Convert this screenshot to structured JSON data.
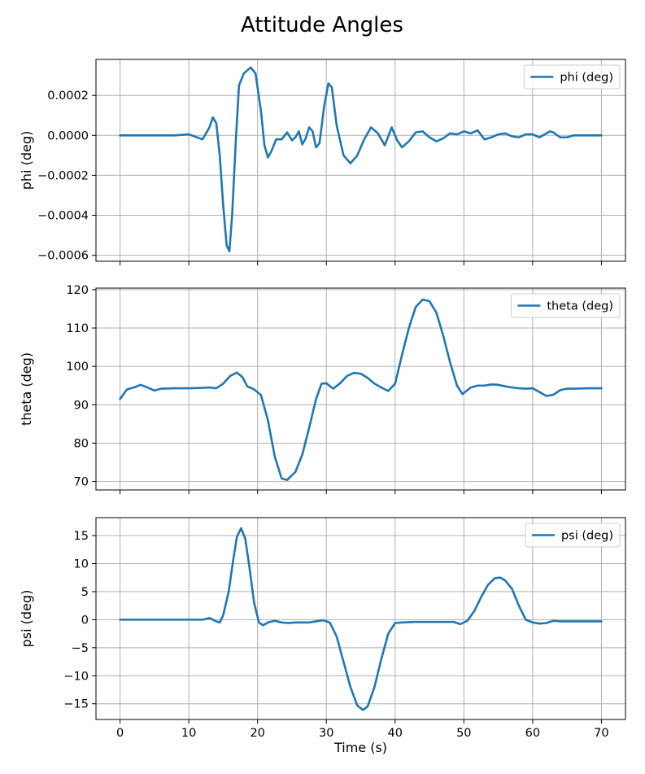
{
  "figure": {
    "title": "Attitude Angles",
    "line_color": "#1f77b4",
    "grid_color": "#b0b0b0"
  },
  "chart_data": [
    {
      "type": "line",
      "ylabel": "phi (deg)",
      "xlabel": "",
      "xlim": [
        -3.5,
        73.5
      ],
      "ylim": [
        -0.00063,
        0.00038
      ],
      "xticks": [
        0,
        10,
        20,
        30,
        40,
        50,
        60,
        70
      ],
      "xtick_labels": [],
      "yticks": [
        -0.0006,
        -0.0004,
        -0.0002,
        0.0,
        0.0002
      ],
      "ytick_labels": [
        "−0.0006",
        "−0.0004",
        "−0.0002",
        "0.0000",
        "0.0002"
      ],
      "grid": true,
      "legend_position": "top-right",
      "series": [
        {
          "name": "phi (deg)",
          "points": [
            [
              0,
              0
            ],
            [
              5,
              0
            ],
            [
              8,
              0
            ],
            [
              10,
              5e-06
            ],
            [
              12,
              -2e-05
            ],
            [
              13,
              4e-05
            ],
            [
              13.5,
              9e-05
            ],
            [
              14,
              6e-05
            ],
            [
              14.5,
              -0.0001
            ],
            [
              15,
              -0.00035
            ],
            [
              15.5,
              -0.00055
            ],
            [
              15.9,
              -0.00058
            ],
            [
              16.3,
              -0.0004
            ],
            [
              16.8,
              -5e-05
            ],
            [
              17.3,
              0.00025
            ],
            [
              18,
              0.00031
            ],
            [
              19,
              0.00034
            ],
            [
              19.7,
              0.00031
            ],
            [
              20.5,
              0.00012
            ],
            [
              21,
              -5e-05
            ],
            [
              21.5,
              -0.00011
            ],
            [
              22,
              -8e-05
            ],
            [
              22.7,
              -2e-05
            ],
            [
              23.5,
              -2e-05
            ],
            [
              24.3,
              1.5e-05
            ],
            [
              25,
              -2.5e-05
            ],
            [
              25.5,
              -1e-05
            ],
            [
              26,
              2e-05
            ],
            [
              26.5,
              -4.5e-05
            ],
            [
              27,
              -1.5e-05
            ],
            [
              27.5,
              4e-05
            ],
            [
              28,
              2e-05
            ],
            [
              28.5,
              -6e-05
            ],
            [
              29,
              -4e-05
            ],
            [
              29.7,
              0.00015
            ],
            [
              30.3,
              0.00026
            ],
            [
              30.8,
              0.00024
            ],
            [
              31.5,
              5e-05
            ],
            [
              32.5,
              -0.0001
            ],
            [
              33.5,
              -0.00014
            ],
            [
              34.5,
              -0.0001
            ],
            [
              35.5,
              -2e-05
            ],
            [
              36.5,
              4e-05
            ],
            [
              37.5,
              1e-05
            ],
            [
              38.5,
              -5e-05
            ],
            [
              39.5,
              4e-05
            ],
            [
              40.3,
              -2.5e-05
            ],
            [
              41,
              -6e-05
            ],
            [
              42,
              -3e-05
            ],
            [
              43,
              1.5e-05
            ],
            [
              44,
              2e-05
            ],
            [
              45,
              -1e-05
            ],
            [
              46,
              -3e-05
            ],
            [
              47,
              -1.5e-05
            ],
            [
              48,
              1e-05
            ],
            [
              49,
              5e-06
            ],
            [
              50,
              2e-05
            ],
            [
              51,
              1e-05
            ],
            [
              52,
              2.5e-05
            ],
            [
              53,
              -2e-05
            ],
            [
              54,
              -1e-05
            ],
            [
              55,
              5e-06
            ],
            [
              56,
              1e-05
            ],
            [
              57,
              -5e-06
            ],
            [
              58,
              -1e-05
            ],
            [
              59,
              5e-06
            ],
            [
              60,
              5e-06
            ],
            [
              61,
              -1e-05
            ],
            [
              62,
              1e-05
            ],
            [
              62.5,
              2e-05
            ],
            [
              63,
              1.5e-05
            ],
            [
              64,
              -1e-05
            ],
            [
              65,
              -1e-05
            ],
            [
              66,
              0
            ],
            [
              68,
              0
            ],
            [
              70,
              0
            ]
          ]
        }
      ]
    },
    {
      "type": "line",
      "ylabel": "theta (deg)",
      "xlabel": "",
      "xlim": [
        -3.5,
        73.5
      ],
      "ylim": [
        67.8,
        120.4
      ],
      "xticks": [
        0,
        10,
        20,
        30,
        40,
        50,
        60,
        70
      ],
      "xtick_labels": [],
      "yticks": [
        70,
        80,
        90,
        100,
        110,
        120
      ],
      "ytick_labels": [
        "70",
        "80",
        "90",
        "100",
        "110",
        "120"
      ],
      "grid": true,
      "legend_position": "top-right",
      "series": [
        {
          "name": "theta (deg)",
          "points": [
            [
              0,
              91.5
            ],
            [
              1,
              94
            ],
            [
              2,
              94.5
            ],
            [
              3,
              95.2
            ],
            [
              4,
              94.5
            ],
            [
              5,
              93.7
            ],
            [
              6,
              94.2
            ],
            [
              8,
              94.3
            ],
            [
              10,
              94.3
            ],
            [
              12,
              94.4
            ],
            [
              13,
              94.5
            ],
            [
              14,
              94.3
            ],
            [
              15,
              95.5
            ],
            [
              16,
              97.5
            ],
            [
              17,
              98.4
            ],
            [
              17.8,
              97.2
            ],
            [
              18.5,
              94.8
            ],
            [
              19.5,
              94
            ],
            [
              20.5,
              92.5
            ],
            [
              21.5,
              86
            ],
            [
              22.5,
              76.5
            ],
            [
              23.5,
              70.8
            ],
            [
              24.3,
              70.4
            ],
            [
              25.5,
              72.5
            ],
            [
              26.5,
              77
            ],
            [
              27.5,
              84
            ],
            [
              28.5,
              91.5
            ],
            [
              29.3,
              95.5
            ],
            [
              30,
              95.6
            ],
            [
              31,
              94.2
            ],
            [
              32,
              95.6
            ],
            [
              33,
              97.5
            ],
            [
              34,
              98.3
            ],
            [
              35,
              98.1
            ],
            [
              36,
              97
            ],
            [
              37,
              95.5
            ],
            [
              38,
              94.5
            ],
            [
              39,
              93.6
            ],
            [
              40,
              95.5
            ],
            [
              41,
              103
            ],
            [
              42,
              110
            ],
            [
              43,
              115.5
            ],
            [
              44,
              117.4
            ],
            [
              45,
              117
            ],
            [
              46,
              114
            ],
            [
              47,
              108
            ],
            [
              48,
              101
            ],
            [
              49,
              95
            ],
            [
              49.8,
              92.8
            ],
            [
              51,
              94.5
            ],
            [
              52,
              95
            ],
            [
              53,
              95
            ],
            [
              54,
              95.3
            ],
            [
              55,
              95.2
            ],
            [
              56,
              94.8
            ],
            [
              57,
              94.5
            ],
            [
              58,
              94.3
            ],
            [
              59,
              94.2
            ],
            [
              60,
              94.3
            ],
            [
              61,
              93.3
            ],
            [
              62,
              92.3
            ],
            [
              63,
              92.6
            ],
            [
              64,
              93.8
            ],
            [
              65,
              94.2
            ],
            [
              66,
              94.2
            ],
            [
              68,
              94.3
            ],
            [
              70,
              94.3
            ]
          ]
        }
      ]
    },
    {
      "type": "line",
      "ylabel": "psi (deg)",
      "xlabel": "Time (s)",
      "xlim": [
        -3.5,
        73.5
      ],
      "ylim": [
        -17.8,
        18.2
      ],
      "xticks": [
        0,
        10,
        20,
        30,
        40,
        50,
        60,
        70
      ],
      "xtick_labels": [
        "0",
        "10",
        "20",
        "30",
        "40",
        "50",
        "60",
        "70"
      ],
      "yticks": [
        -15,
        -10,
        -5,
        0,
        5,
        10,
        15
      ],
      "ytick_labels": [
        "−15",
        "−10",
        "−5",
        "0",
        "5",
        "10",
        "15"
      ],
      "grid": true,
      "legend_position": "top-right",
      "series": [
        {
          "name": "psi (deg)",
          "points": [
            [
              0,
              0
            ],
            [
              5,
              0
            ],
            [
              10,
              0
            ],
            [
              12,
              0
            ],
            [
              13,
              0.3
            ],
            [
              14,
              -0.3
            ],
            [
              14.5,
              -0.5
            ],
            [
              15,
              0.8
            ],
            [
              15.8,
              5
            ],
            [
              16.5,
              11
            ],
            [
              17,
              14.8
            ],
            [
              17.6,
              16.3
            ],
            [
              18.2,
              14.5
            ],
            [
              18.8,
              9.5
            ],
            [
              19.5,
              3
            ],
            [
              20.2,
              -0.5
            ],
            [
              20.8,
              -1
            ],
            [
              21.5,
              -0.5
            ],
            [
              22.5,
              -0.2
            ],
            [
              23.5,
              -0.5
            ],
            [
              24.5,
              -0.6
            ],
            [
              25.5,
              -0.5
            ],
            [
              26.5,
              -0.5
            ],
            [
              27.5,
              -0.5
            ],
            [
              28.5,
              -0.3
            ],
            [
              29.5,
              -0.1
            ],
            [
              30.5,
              -0.5
            ],
            [
              31.5,
              -3
            ],
            [
              32.5,
              -7.5
            ],
            [
              33.5,
              -12
            ],
            [
              34.5,
              -15.3
            ],
            [
              35.3,
              -16.1
            ],
            [
              36,
              -15.5
            ],
            [
              37,
              -12
            ],
            [
              38,
              -7
            ],
            [
              39,
              -2.5
            ],
            [
              40,
              -0.6
            ],
            [
              41,
              -0.5
            ],
            [
              43,
              -0.4
            ],
            [
              45,
              -0.4
            ],
            [
              47,
              -0.4
            ],
            [
              48.5,
              -0.4
            ],
            [
              49.5,
              -0.8
            ],
            [
              50.5,
              -0.2
            ],
            [
              51.5,
              1.5
            ],
            [
              52.5,
              4
            ],
            [
              53.5,
              6.2
            ],
            [
              54.5,
              7.4
            ],
            [
              55.3,
              7.5
            ],
            [
              56,
              7
            ],
            [
              57,
              5.5
            ],
            [
              58,
              2.5
            ],
            [
              59,
              0
            ],
            [
              60,
              -0.5
            ],
            [
              61,
              -0.7
            ],
            [
              62,
              -0.6
            ],
            [
              63,
              -0.2
            ],
            [
              64,
              -0.3
            ],
            [
              66,
              -0.3
            ],
            [
              68,
              -0.3
            ],
            [
              70,
              -0.3
            ]
          ]
        }
      ]
    }
  ]
}
